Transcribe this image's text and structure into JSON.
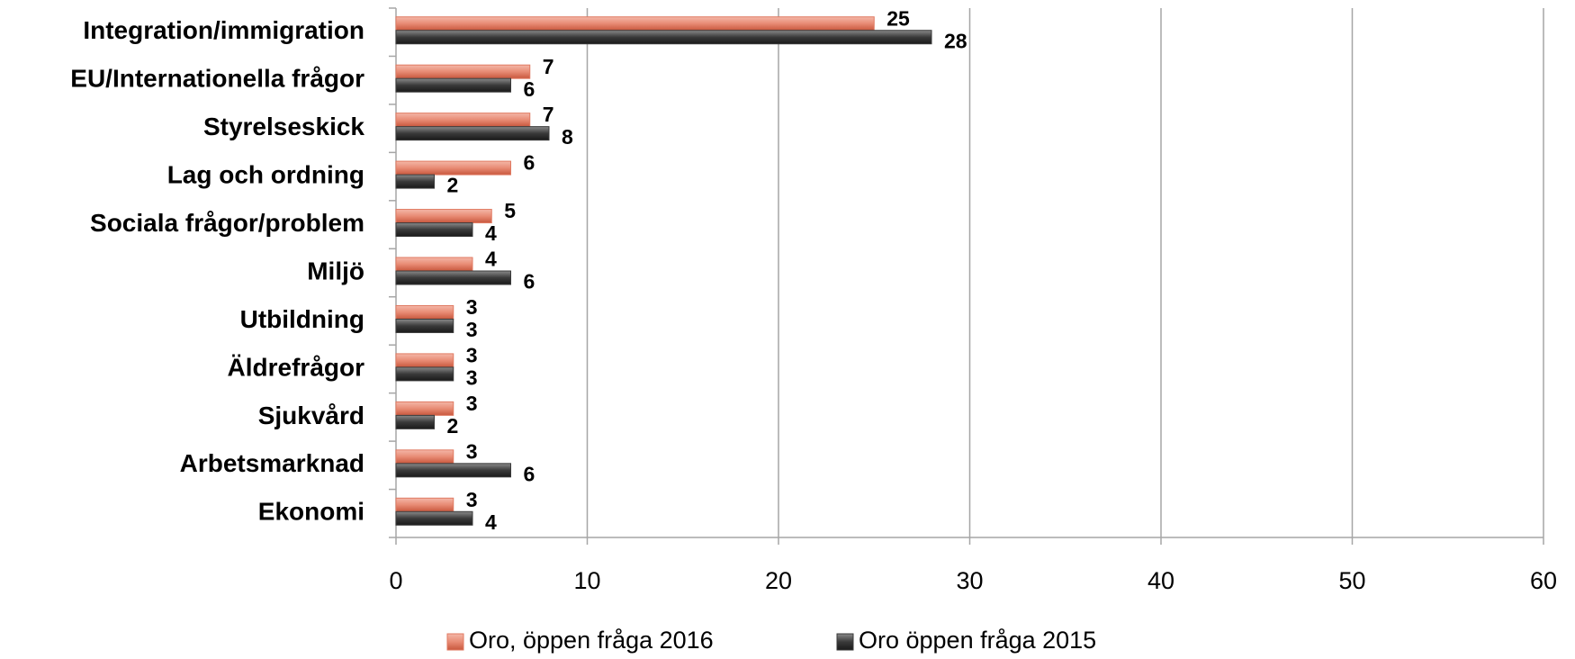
{
  "chart_data": {
    "type": "bar",
    "orientation": "horizontal",
    "categories": [
      "Integration/immigration",
      "EU/Internationella frågor",
      "Styrelseskick",
      "Lag och ordning",
      "Sociala frågor/problem",
      "Miljö",
      "Utbildning",
      "Äldrefrågor",
      "Sjukvård",
      "Arbetsmarknad",
      "Ekonomi"
    ],
    "series": [
      {
        "name": "Oro, öppen fråga 2016",
        "color": "#e07a62",
        "values": [
          25,
          7,
          7,
          6,
          5,
          4,
          3,
          3,
          3,
          3,
          3
        ]
      },
      {
        "name": "Oro öppen fråga 2015",
        "color": "#3a3a3a",
        "values": [
          28,
          6,
          8,
          2,
          4,
          6,
          3,
          3,
          2,
          6,
          4
        ]
      }
    ],
    "xlim": [
      0,
      60
    ],
    "xticks": [
      0,
      10,
      20,
      30,
      40,
      50,
      60
    ],
    "grid": true,
    "legend": "bottom"
  }
}
